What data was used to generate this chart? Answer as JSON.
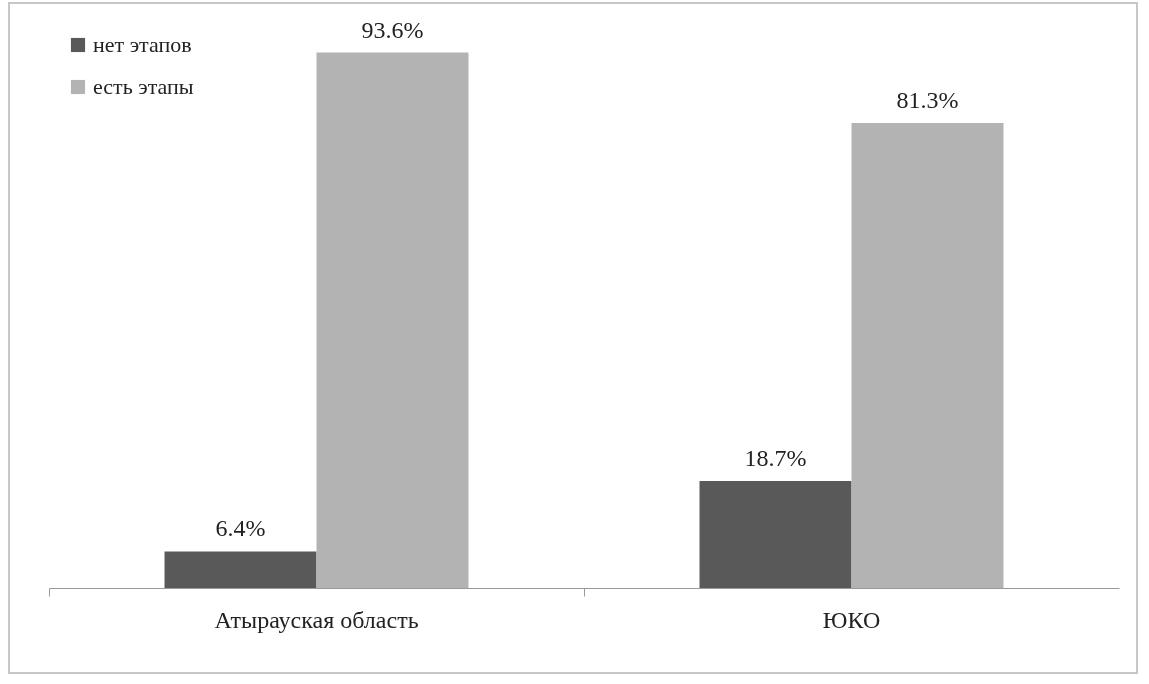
{
  "chart_data": {
    "type": "bar",
    "categories": [
      "Атырауская область",
      "ЮКО"
    ],
    "legend": "top left",
    "series": [
      {
        "name": "нет этапов",
        "color": "#595959",
        "values": [
          6.4,
          18.7
        ],
        "value_labels": [
          "6.4%",
          "18.7%"
        ]
      },
      {
        "name": "есть этапы",
        "color": "#b3b3b3",
        "values": [
          93.6,
          81.3
        ],
        "value_labels": [
          "93.6%",
          "81.3%"
        ]
      }
    ]
  }
}
